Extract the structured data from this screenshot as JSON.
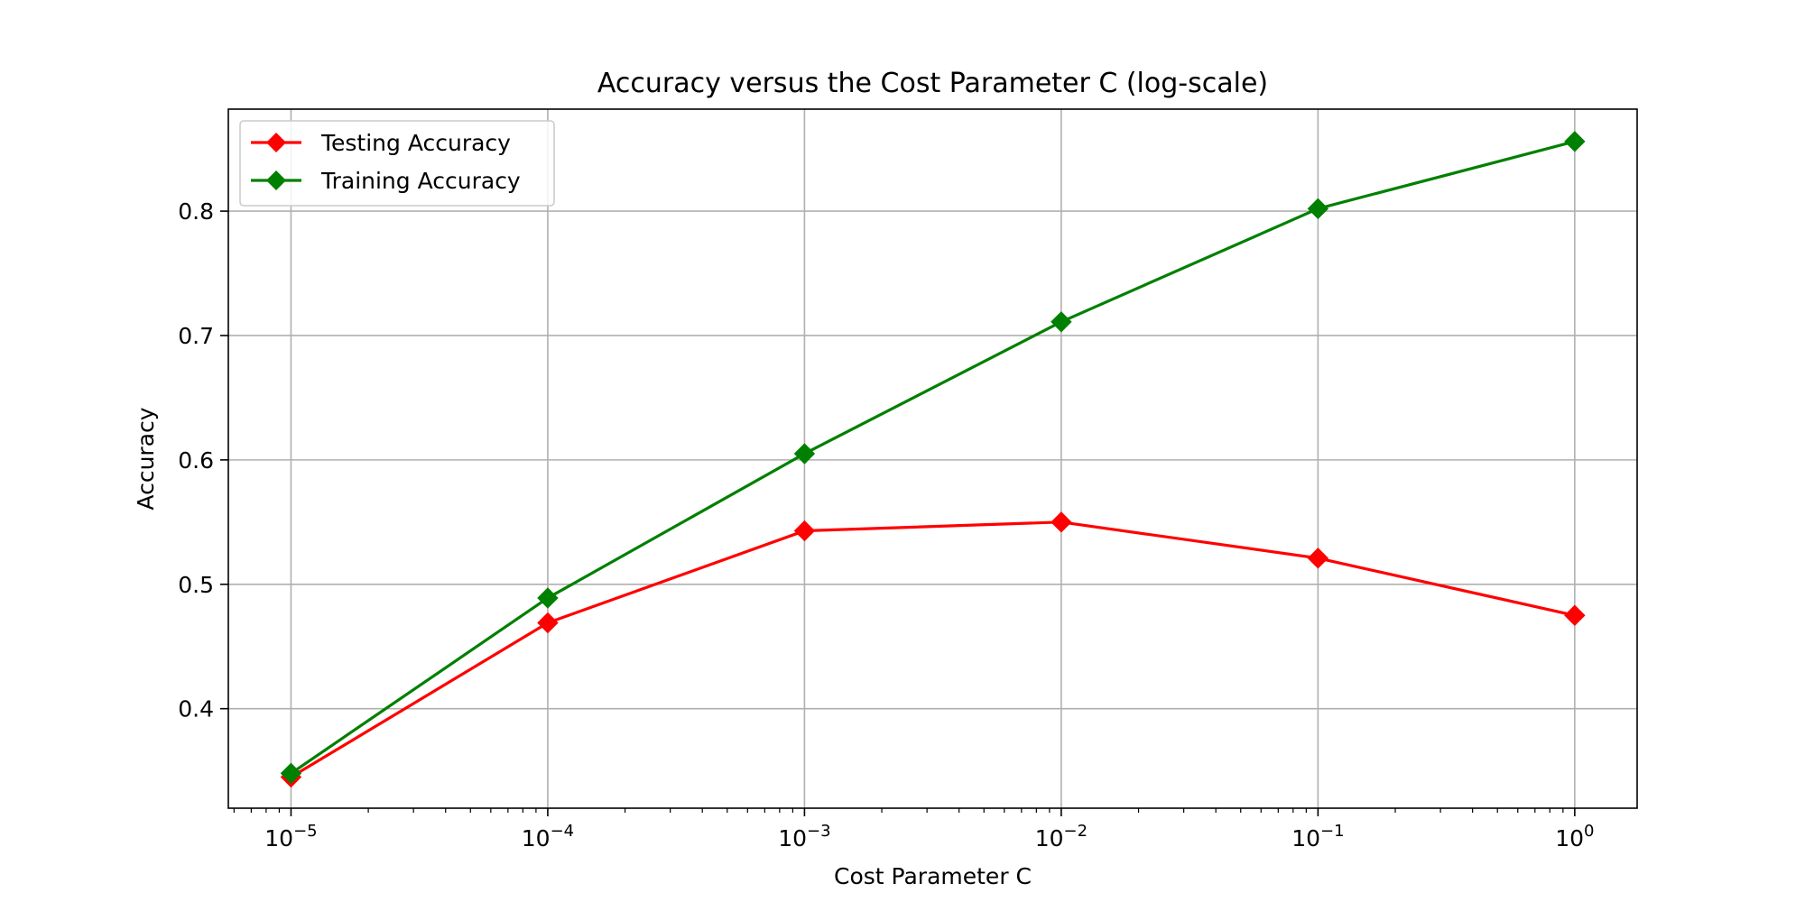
{
  "chart_data": {
    "type": "line",
    "title": "Accuracy versus the Cost Parameter C (log-scale)",
    "xlabel": "Cost Parameter C",
    "ylabel": "Accuracy",
    "xscale": "log",
    "x": [
      1e-05,
      0.0001,
      0.001,
      0.01,
      0.1,
      1
    ],
    "x_tick_labels": [
      {
        "base": "10",
        "exp": "−5"
      },
      {
        "base": "10",
        "exp": "−4"
      },
      {
        "base": "10",
        "exp": "−3"
      },
      {
        "base": "10",
        "exp": "−2"
      },
      {
        "base": "10",
        "exp": "−1"
      },
      {
        "base": "10",
        "exp": "0"
      }
    ],
    "y_ticks": [
      0.4,
      0.5,
      0.6,
      0.7,
      0.8
    ],
    "y_tick_labels": [
      "0.4",
      "0.5",
      "0.6",
      "0.7",
      "0.8"
    ],
    "xlim": [
      5.7e-06,
      1.75
    ],
    "ylim": [
      0.32,
      0.882
    ],
    "grid": true,
    "legend_position": "upper-left",
    "series": [
      {
        "name": "Testing Accuracy",
        "color": "#ff0000",
        "marker": "diamond",
        "values": [
          0.345,
          0.469,
          0.543,
          0.55,
          0.521,
          0.475
        ]
      },
      {
        "name": "Training Accuracy",
        "color": "#008000",
        "marker": "diamond",
        "values": [
          0.348,
          0.489,
          0.605,
          0.711,
          0.802,
          0.856
        ]
      }
    ]
  }
}
